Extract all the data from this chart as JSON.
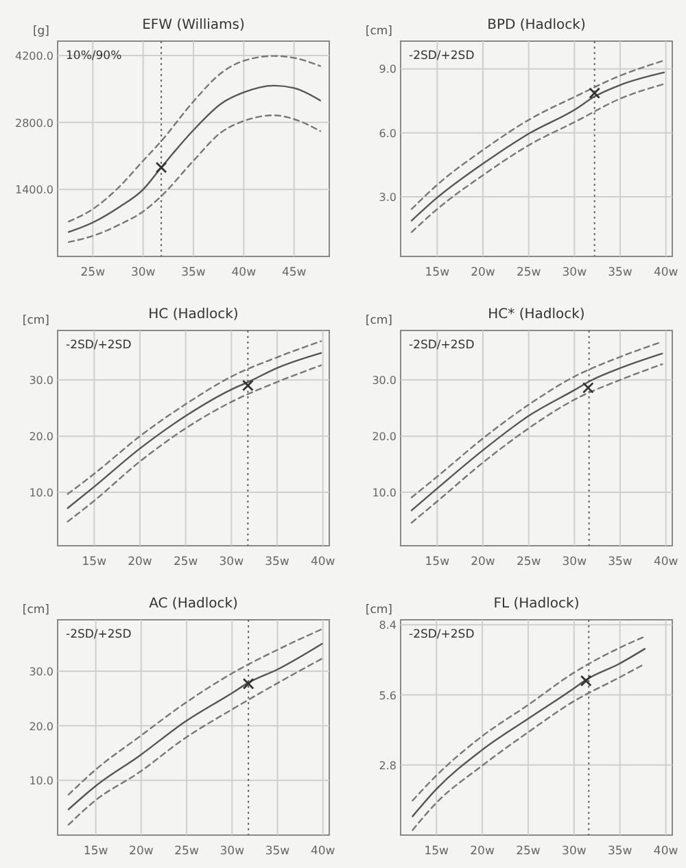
{
  "chart_data": [
    {
      "type": "line",
      "title": "EFW (Williams)",
      "ylabel": "[g]",
      "annotations": [
        "10%/90%"
      ],
      "xlim": [
        21.5,
        48.5
      ],
      "ylim": [
        0,
        4500
      ],
      "xticks": [
        {
          "value": 25,
          "label": "25w"
        },
        {
          "value": 30,
          "label": "30w"
        },
        {
          "value": 35,
          "label": "35w"
        },
        {
          "value": 40,
          "label": "40w"
        },
        {
          "value": 45,
          "label": "45w"
        }
      ],
      "yticks": [
        {
          "value": 1400,
          "label": "1400.0"
        },
        {
          "value": 2800,
          "label": "2800.0"
        },
        {
          "value": 4200,
          "label": "4200.0"
        }
      ],
      "grid": true,
      "ref_lines": [
        {
          "axis": "x",
          "value": 31.8,
          "color": "#666666",
          "line_style": "dotted"
        }
      ],
      "series": [
        {
          "color": "#555555",
          "line_style": "solid",
          "x": [
            22.6,
            25,
            27.6,
            30,
            31.8,
            35,
            37.8,
            40,
            43,
            45,
            47.6
          ],
          "values": [
            510,
            710,
            1030,
            1400,
            1860,
            2640,
            3200,
            3430,
            3570,
            3520,
            3260
          ]
        },
        {
          "color": "#777777",
          "line_style": "dashed",
          "x": [
            22.6,
            25,
            27.6,
            30,
            31.8,
            35,
            37.8,
            40,
            43,
            45,
            47.6
          ],
          "values": [
            730,
            990,
            1450,
            2000,
            2410,
            3240,
            3840,
            4090,
            4190,
            4150,
            3980
          ]
        },
        {
          "color": "#777777",
          "line_style": "dashed",
          "x": [
            22.6,
            25,
            27.6,
            30,
            31.8,
            35,
            37.8,
            40,
            43,
            45,
            47.6
          ],
          "values": [
            300,
            430,
            660,
            940,
            1260,
            2000,
            2600,
            2830,
            2950,
            2870,
            2620
          ]
        },
        {
          "type": "scatter",
          "marker": "cross",
          "color": "#333333",
          "x": [
            31.8
          ],
          "values": [
            1860
          ]
        }
      ]
    },
    {
      "type": "line",
      "title": "BPD (Hadlock)",
      "ylabel": "[cm]",
      "annotations": [
        "-2SD/+2SD"
      ],
      "xlim": [
        11,
        40.7
      ],
      "ylim": [
        0.2,
        10.3
      ],
      "xticks": [
        {
          "value": 15,
          "label": "15w"
        },
        {
          "value": 20,
          "label": "20w"
        },
        {
          "value": 25,
          "label": "25w"
        },
        {
          "value": 30,
          "label": "30w"
        },
        {
          "value": 35,
          "label": "35w"
        },
        {
          "value": 40,
          "label": "40w"
        }
      ],
      "yticks": [
        {
          "value": 3,
          "label": "3.0"
        },
        {
          "value": 6,
          "label": "6.0"
        },
        {
          "value": 9,
          "label": "9.0"
        }
      ],
      "grid": true,
      "ref_lines": [
        {
          "axis": "x",
          "value": 32.2,
          "color": "#666666",
          "line_style": "dotted"
        }
      ],
      "series": [
        {
          "color": "#555555",
          "line_style": "solid",
          "x": [
            12.2,
            15,
            20.1,
            25.1,
            30.1,
            32.2,
            35,
            39.8
          ],
          "values": [
            1.88,
            2.96,
            4.58,
            5.98,
            7.1,
            7.7,
            8.24,
            8.83
          ]
        },
        {
          "color": "#777777",
          "line_style": "dashed",
          "x": [
            12.2,
            15,
            20.1,
            25.1,
            30.1,
            35,
            39.8
          ],
          "values": [
            2.42,
            3.56,
            5.22,
            6.63,
            7.7,
            8.68,
            9.39
          ]
        },
        {
          "color": "#777777",
          "line_style": "dashed",
          "x": [
            12.2,
            15,
            20.1,
            25.1,
            30.1,
            35,
            39.8
          ],
          "values": [
            1.34,
            2.42,
            4.04,
            5.44,
            6.52,
            7.6,
            8.29
          ]
        },
        {
          "type": "scatter",
          "marker": "cross",
          "color": "#333333",
          "x": [
            32.2
          ],
          "values": [
            7.86
          ]
        }
      ]
    },
    {
      "type": "line",
      "title": "HC (Hadlock)",
      "ylabel": "[cm]",
      "annotations": [
        "-2SD/+2SD"
      ],
      "xlim": [
        11,
        40.7
      ],
      "ylim": [
        0.5,
        38.8
      ],
      "xticks": [
        {
          "value": 15,
          "label": "15w"
        },
        {
          "value": 20,
          "label": "20w"
        },
        {
          "value": 25,
          "label": "25w"
        },
        {
          "value": 30,
          "label": "30w"
        },
        {
          "value": 35,
          "label": "35w"
        },
        {
          "value": 40,
          "label": "40w"
        }
      ],
      "yticks": [
        {
          "value": 10,
          "label": "10.0"
        },
        {
          "value": 20,
          "label": "20.0"
        },
        {
          "value": 30,
          "label": "30.0"
        }
      ],
      "grid": true,
      "ref_lines": [
        {
          "axis": "x",
          "value": 31.8,
          "color": "#666666",
          "line_style": "dotted"
        }
      ],
      "series": [
        {
          "color": "#555555",
          "line_style": "solid",
          "x": [
            12.1,
            15,
            20,
            25.1,
            30,
            31.8,
            35.1,
            39.8
          ],
          "values": [
            7.2,
            11,
            17.8,
            23.7,
            28.3,
            29.6,
            32.2,
            34.8
          ]
        },
        {
          "color": "#777777",
          "line_style": "dashed",
          "x": [
            12.1,
            15,
            20,
            25.1,
            30,
            35.1,
            39.8
          ],
          "values": [
            9.7,
            13.3,
            20,
            25.8,
            30.6,
            34.1,
            36.9
          ]
        },
        {
          "color": "#777777",
          "line_style": "dashed",
          "x": [
            12.1,
            15,
            20,
            25.1,
            30,
            35.1,
            39.8
          ],
          "values": [
            4.8,
            8.5,
            15.5,
            21.5,
            26.1,
            29.7,
            32.6
          ]
        },
        {
          "type": "scatter",
          "marker": "cross",
          "color": "#333333",
          "x": [
            31.8
          ],
          "values": [
            29
          ]
        }
      ]
    },
    {
      "type": "line",
      "title": "HC* (Hadlock)",
      "ylabel": "[cm]",
      "annotations": [
        "-2SD/+2SD"
      ],
      "xlim": [
        11,
        40.7
      ],
      "ylim": [
        0.5,
        38.8
      ],
      "xticks": [
        {
          "value": 15,
          "label": "15w"
        },
        {
          "value": 20,
          "label": "20w"
        },
        {
          "value": 25,
          "label": "25w"
        },
        {
          "value": 30,
          "label": "30w"
        },
        {
          "value": 35,
          "label": "35w"
        },
        {
          "value": 40,
          "label": "40w"
        }
      ],
      "yticks": [
        {
          "value": 10,
          "label": "10.0"
        },
        {
          "value": 20,
          "label": "20.0"
        },
        {
          "value": 30,
          "label": "30.0"
        }
      ],
      "grid": true,
      "ref_lines": [
        {
          "axis": "x",
          "value": 31.6,
          "color": "#666666",
          "line_style": "dotted"
        }
      ],
      "series": [
        {
          "color": "#555555",
          "line_style": "solid",
          "x": [
            12.2,
            15,
            20,
            25,
            30,
            31.7,
            35,
            39.6
          ],
          "values": [
            6.8,
            10.7,
            17.5,
            23.6,
            28.2,
            29.8,
            32.1,
            34.7
          ]
        },
        {
          "color": "#777777",
          "line_style": "dashed",
          "x": [
            12.2,
            15,
            20,
            25,
            30,
            35,
            39.6
          ],
          "values": [
            9.1,
            12.8,
            19.6,
            25.6,
            30.6,
            34.1,
            36.8
          ]
        },
        {
          "color": "#777777",
          "line_style": "dashed",
          "x": [
            12.2,
            15,
            20,
            25,
            30,
            35,
            39.6
          ],
          "values": [
            4.6,
            8.4,
            15.3,
            21.4,
            26.5,
            30,
            32.8
          ]
        },
        {
          "type": "scatter",
          "marker": "cross",
          "color": "#333333",
          "x": [
            31.5
          ],
          "values": [
            28.6
          ]
        }
      ]
    },
    {
      "type": "line",
      "title": "AC (Hadlock)",
      "ylabel": "[cm]",
      "annotations": [
        "-2SD/+2SD"
      ],
      "xlim": [
        10.8,
        40.7
      ],
      "ylim": [
        0,
        39.4
      ],
      "xticks": [
        {
          "value": 15,
          "label": "15w"
        },
        {
          "value": 20,
          "label": "20w"
        },
        {
          "value": 25,
          "label": "25w"
        },
        {
          "value": 30,
          "label": "30w"
        },
        {
          "value": 35,
          "label": "35w"
        },
        {
          "value": 40,
          "label": "40w"
        }
      ],
      "yticks": [
        {
          "value": 10,
          "label": "10.0"
        },
        {
          "value": 20,
          "label": "20.0"
        },
        {
          "value": 30,
          "label": "30.0"
        }
      ],
      "grid": true,
      "ref_lines": [
        {
          "axis": "x",
          "value": 31.8,
          "color": "#666666",
          "line_style": "dotted"
        }
      ],
      "series": [
        {
          "color": "#555555",
          "line_style": "solid",
          "x": [
            12,
            15,
            19.8,
            24.7,
            30.1,
            31.8,
            35.1,
            39.9
          ],
          "values": [
            4.7,
            9,
            14.5,
            20.6,
            26.1,
            27.9,
            30.4,
            35
          ]
        },
        {
          "color": "#777777",
          "line_style": "dashed",
          "x": [
            12,
            15,
            19.8,
            24.7,
            30.1,
            35.1,
            39.9
          ],
          "values": [
            7.4,
            12,
            18,
            24,
            29.7,
            34,
            37.7
          ]
        },
        {
          "color": "#777777",
          "line_style": "dashed",
          "x": [
            12,
            15,
            19.8,
            24.7,
            30.1,
            35.1,
            39.9
          ],
          "values": [
            1.9,
            6.4,
            11.5,
            17.6,
            23.1,
            27.9,
            32.3
          ]
        },
        {
          "type": "scatter",
          "marker": "cross",
          "color": "#333333",
          "x": [
            31.8
          ],
          "values": [
            27.7
          ]
        }
      ]
    },
    {
      "type": "line",
      "title": "FL (Hadlock)",
      "ylabel": "[cm]",
      "annotations": [
        "-2SD/+2SD"
      ],
      "xlim": [
        11.1,
        40.7
      ],
      "ylim": [
        0,
        8.6
      ],
      "xticks": [
        {
          "value": 15,
          "label": "15w"
        },
        {
          "value": 20,
          "label": "20w"
        },
        {
          "value": 25,
          "label": "25w"
        },
        {
          "value": 30,
          "label": "30w"
        },
        {
          "value": 35,
          "label": "35w"
        },
        {
          "value": 40,
          "label": "40w"
        }
      ],
      "yticks": [
        {
          "value": 2.8,
          "label": "2.8"
        },
        {
          "value": 5.6,
          "label": "5.6"
        },
        {
          "value": 8.4,
          "label": "8.4"
        }
      ],
      "grid": true,
      "ref_lines": [
        {
          "axis": "x",
          "value": 31.6,
          "color": "#666666",
          "line_style": "dotted"
        }
      ],
      "series": [
        {
          "color": "#555555",
          "line_style": "solid",
          "x": [
            12.4,
            15,
            19.9,
            25,
            29.9,
            31.3,
            34.9,
            37.7
          ],
          "values": [
            0.75,
            1.84,
            3.38,
            4.65,
            5.84,
            6.2,
            6.84,
            7.44
          ]
        },
        {
          "color": "#777777",
          "line_style": "dashed",
          "x": [
            12.4,
            15,
            19.9,
            25,
            29.9,
            34.9,
            37.7
          ],
          "values": [
            1.38,
            2.38,
            3.93,
            5.2,
            6.47,
            7.47,
            7.93
          ]
        },
        {
          "color": "#777777",
          "line_style": "dashed",
          "x": [
            12.4,
            15,
            19.9,
            25,
            29.9,
            34.9,
            37.7
          ],
          "values": [
            0.2,
            1.29,
            2.75,
            4.11,
            5.33,
            6.29,
            6.84
          ]
        },
        {
          "type": "scatter",
          "marker": "cross",
          "color": "#333333",
          "x": [
            31.3
          ],
          "values": [
            6.16
          ]
        }
      ]
    }
  ]
}
